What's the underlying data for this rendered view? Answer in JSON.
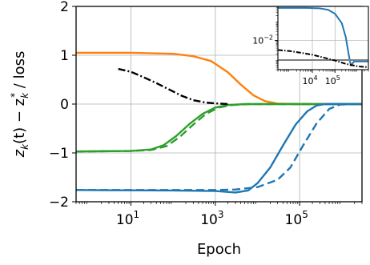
{
  "chart_data": {
    "type": "line",
    "xlabel": "Epoch",
    "ylabel_parts": [
      "z",
      "k",
      "(t) − z",
      "k",
      "*",
      " / loss"
    ],
    "x_scale": "log",
    "xlim": [
      0.5,
      3000000.0
    ],
    "ylim": [
      -2,
      2
    ],
    "grid": true,
    "x_ticks": [
      {
        "value": 10,
        "base": "10",
        "exp": "1"
      },
      {
        "value": 1000,
        "base": "10",
        "exp": "3"
      },
      {
        "value": 100000,
        "base": "10",
        "exp": "5"
      }
    ],
    "y_ticks": [
      {
        "value": 2,
        "label": "2"
      },
      {
        "value": 1,
        "label": "1"
      },
      {
        "value": 0,
        "label": "0"
      },
      {
        "value": -1,
        "label": "−1"
      },
      {
        "value": -2,
        "label": "−2"
      }
    ],
    "series": [
      {
        "color": "#ff7f0e",
        "style": "solid",
        "points": [
          [
            0.5,
            1.05
          ],
          [
            10,
            1.05
          ],
          [
            100,
            1.03
          ],
          [
            300,
            0.98
          ],
          [
            800,
            0.88
          ],
          [
            2000,
            0.65
          ],
          [
            4000,
            0.4
          ],
          [
            8000,
            0.18
          ],
          [
            15000,
            0.06
          ],
          [
            30000,
            0.01
          ],
          [
            100000,
            0.0
          ],
          [
            3000000,
            0.0
          ]
        ]
      },
      {
        "color": "#2ca02c",
        "style": "solid",
        "points": [
          [
            0.5,
            -0.97
          ],
          [
            10,
            -0.96
          ],
          [
            30,
            -0.93
          ],
          [
            60,
            -0.84
          ],
          [
            120,
            -0.65
          ],
          [
            250,
            -0.4
          ],
          [
            500,
            -0.2
          ],
          [
            1000,
            -0.07
          ],
          [
            2000,
            -0.02
          ],
          [
            5000,
            0.0
          ],
          [
            3000000,
            0.0
          ]
        ]
      },
      {
        "color": "#2ca02c",
        "style": "dashed",
        "points": [
          [
            0.5,
            -0.97
          ],
          [
            10,
            -0.96
          ],
          [
            30,
            -0.94
          ],
          [
            70,
            -0.86
          ],
          [
            140,
            -0.68
          ],
          [
            300,
            -0.42
          ],
          [
            600,
            -0.2
          ],
          [
            1200,
            -0.07
          ],
          [
            2500,
            -0.02
          ],
          [
            6000,
            0.0
          ],
          [
            3000000,
            0.0
          ]
        ]
      },
      {
        "color": "#1f77b4",
        "style": "solid",
        "points": [
          [
            0.5,
            -1.76
          ],
          [
            100,
            -1.77
          ],
          [
            1000,
            -1.78
          ],
          [
            3000,
            -1.81
          ],
          [
            6000,
            -1.77
          ],
          [
            10000,
            -1.62
          ],
          [
            20000,
            -1.3
          ],
          [
            40000,
            -0.85
          ],
          [
            80000,
            -0.42
          ],
          [
            150000,
            -0.15
          ],
          [
            250000,
            -0.03
          ],
          [
            400000,
            0.0
          ],
          [
            3000000,
            0.0
          ]
        ]
      },
      {
        "color": "#1f77b4",
        "style": "dashed",
        "points": [
          [
            0.5,
            -1.76
          ],
          [
            1000,
            -1.76
          ],
          [
            3000,
            -1.75
          ],
          [
            10000,
            -1.7
          ],
          [
            30000,
            -1.55
          ],
          [
            60000,
            -1.3
          ],
          [
            120000,
            -0.85
          ],
          [
            250000,
            -0.4
          ],
          [
            500000,
            -0.1
          ],
          [
            900000,
            -0.01
          ],
          [
            2000000,
            0.0
          ]
        ]
      },
      {
        "color": "#000000",
        "style": "dashdot",
        "points": [
          [
            5,
            0.72
          ],
          [
            10,
            0.66
          ],
          [
            20,
            0.55
          ],
          [
            40,
            0.43
          ],
          [
            80,
            0.3
          ],
          [
            150,
            0.18
          ],
          [
            300,
            0.08
          ],
          [
            600,
            0.03
          ],
          [
            1200,
            0.01
          ],
          [
            2000,
            0.0
          ]
        ]
      }
    ],
    "inset": {
      "x_scale": "log",
      "y_scale": "log",
      "xlim": [
        300,
        3000000.0
      ],
      "ylim": [
        0.0003,
        0.6
      ],
      "x_ticks": [
        {
          "value": 10000,
          "base": "10",
          "exp": "4"
        },
        {
          "value": 100000,
          "base": "10",
          "exp": "5"
        }
      ],
      "y_ticks": [
        {
          "value": 0.01,
          "base": "10",
          "exp": "−2"
        }
      ],
      "series": [
        {
          "color": "#1f77b4",
          "style": "solid",
          "points": [
            [
              300,
              0.5
            ],
            [
              5000,
              0.5
            ],
            [
              20000,
              0.48
            ],
            [
              50000,
              0.4
            ],
            [
              100000,
              0.25
            ],
            [
              200000,
              0.08
            ],
            [
              300000,
              0.015
            ],
            [
              400000,
              0.002
            ],
            [
              500000,
              0.0005
            ],
            [
              700000,
              0.0008
            ],
            [
              1000000,
              0.0008
            ],
            [
              3000000,
              0.0008
            ]
          ]
        },
        {
          "color": "#7f7f7f",
          "style": "solid",
          "points": [
            [
              300,
              0.00095
            ],
            [
              3000000,
              0.00095
            ]
          ]
        },
        {
          "color": "#000000",
          "style": "dashdot",
          "points": [
            [
              300,
              0.0032
            ],
            [
              1000,
              0.0028
            ],
            [
              3000,
              0.0023
            ],
            [
              10000,
              0.0018
            ],
            [
              30000,
              0.0013
            ],
            [
              100000,
              0.0009
            ],
            [
              300000,
              0.0006
            ],
            [
              1000000,
              0.00045
            ],
            [
              3000000,
              0.0004
            ]
          ]
        }
      ]
    }
  }
}
